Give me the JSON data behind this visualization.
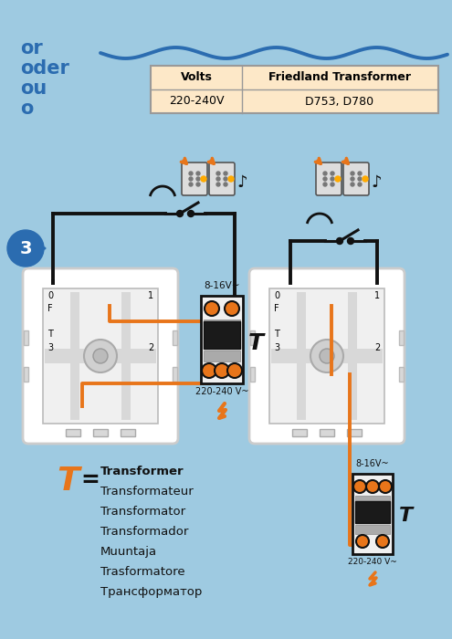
{
  "bg_color": "#9ecae1",
  "title_text_lines": [
    "or",
    "oder",
    "ou",
    "o"
  ],
  "table_header": [
    "Volts",
    "Friedland Transformer"
  ],
  "table_row": [
    "220-240V",
    "D753, D780"
  ],
  "step_number": "3",
  "transformer_label": "8-16V~",
  "mains_label": "220-240 V~",
  "t_translations": [
    "Transformer",
    "Transformateur",
    "Transformator",
    "Transformador",
    "Muuntaja",
    "Trasformatore",
    "Трансформатор"
  ],
  "orange": "#e8751a",
  "black": "#111111",
  "blue": "#2b6cb0",
  "panel_face": "#f8f8f8",
  "panel_inner": "#e8e8e8",
  "panel_border": "#aaaaaa",
  "table_bg": "#fde8c8",
  "trans_face": "#f0f0f0",
  "white": "#ffffff"
}
